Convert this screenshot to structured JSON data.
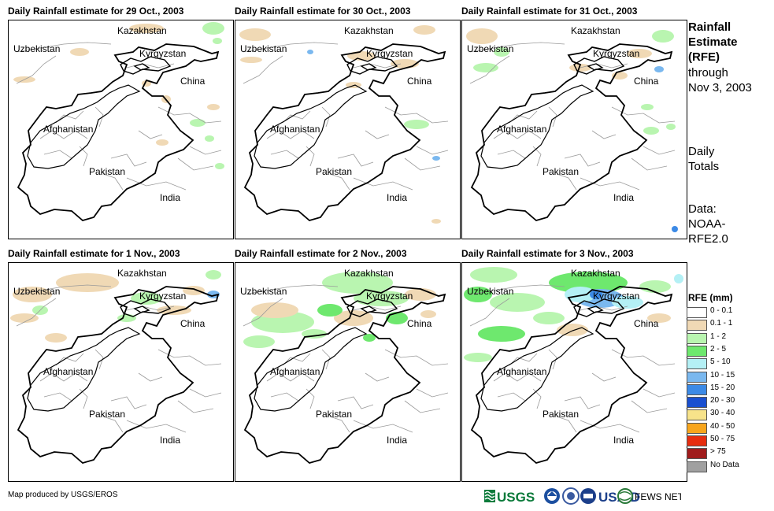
{
  "panels": [
    {
      "title": "Daily Rainfall estimate for 29 Oct., 2003",
      "day": 0
    },
    {
      "title": "Daily Rainfall estimate for 30 Oct., 2003",
      "day": 1
    },
    {
      "title": "Daily Rainfall estimate for 31 Oct., 2003",
      "day": 2
    },
    {
      "title": "Daily Rainfall estimate for 1 Nov., 2003",
      "day": 3
    },
    {
      "title": "Daily Rainfall estimate for 2 Nov., 2003",
      "day": 4
    },
    {
      "title": "Daily Rainfall estimate for 3 Nov., 2003",
      "day": 5
    }
  ],
  "place_labels": {
    "kazakhstan": "Kazakhstan",
    "uzbekistan": "Uzbekistan",
    "kyrgyzstan": "Kyrgyzstan",
    "china": "China",
    "afghanistan": "Afghanistan",
    "pakistan": "Pakistan",
    "india": "India"
  },
  "sidebar": {
    "title_line1": "Rainfall",
    "title_line2": "Estimate",
    "title_line3": "(RFE)",
    "through": "through",
    "date": "Nov 3, 2003",
    "daily": "Daily",
    "totals": "Totals",
    "data_label": "Data:",
    "data_src1": "NOAA-",
    "data_src2": "RFE2.0"
  },
  "legend": {
    "title": "RFE (mm)",
    "items": [
      {
        "label": "0 - 0.1",
        "color": "#ffffff"
      },
      {
        "label": "0.1 - 1",
        "color": "#f0d9b5"
      },
      {
        "label": "1 - 2",
        "color": "#b9f5b0"
      },
      {
        "label": "2 - 5",
        "color": "#6ee86e"
      },
      {
        "label": "5 - 10",
        "color": "#b4f0f5"
      },
      {
        "label": "10 - 15",
        "color": "#7ab8ef"
      },
      {
        "label": "15 - 20",
        "color": "#3c8ae6"
      },
      {
        "label": "20 - 30",
        "color": "#1a50d0"
      },
      {
        "label": "30 - 40",
        "color": "#f7e38a"
      },
      {
        "label": "40 - 50",
        "color": "#f7a51c"
      },
      {
        "label": "50 - 75",
        "color": "#e62d0f"
      },
      {
        "label": "> 75",
        "color": "#a01c1c"
      },
      {
        "label": "No Data",
        "color": "#a0a0a0"
      }
    ]
  },
  "credit": "Map produced by USGS/EROS",
  "logos": {
    "usgs": "USGS",
    "usaid": "USAID",
    "fewsnet": "FEWS NET"
  }
}
